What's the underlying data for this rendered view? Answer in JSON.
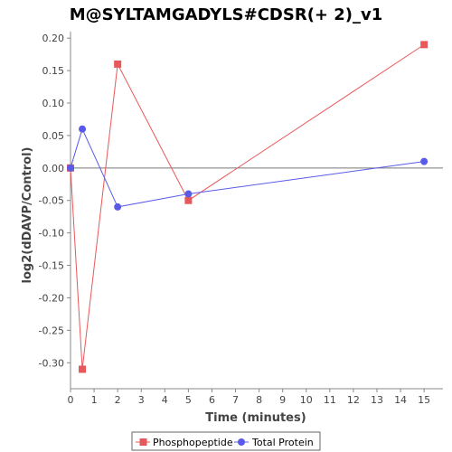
{
  "chart_data": {
    "type": "line",
    "title": "M@SYLTAMGADYLS#CDSR(+ 2)_v1",
    "xlabel": "Time (minutes)",
    "ylabel": "log2(dDAVP/Control)",
    "xlim": [
      0,
      15.8
    ],
    "ylim": [
      -0.34,
      0.21
    ],
    "xticks": [
      "0",
      "1",
      "2",
      "3",
      "4",
      "5",
      "6",
      "7",
      "8",
      "9",
      "10",
      "11",
      "12",
      "13",
      "14",
      "15"
    ],
    "yticks": [
      "0.20",
      "0.15",
      "0.10",
      "0.05",
      "0.00",
      "-0.05",
      "-0.10",
      "-0.15",
      "-0.20",
      "-0.25",
      "-0.30"
    ],
    "ytick_values": [
      0.2,
      0.15,
      0.1,
      0.05,
      0.0,
      -0.05,
      -0.1,
      -0.15,
      -0.2,
      -0.25,
      -0.3
    ],
    "zero_line": true,
    "grid": false,
    "legend_position": "bottom-center",
    "series": [
      {
        "name": "Phosphopeptide",
        "color": "#e8585a",
        "marker": "square",
        "x": [
          0,
          0.5,
          2,
          5,
          15
        ],
        "y": [
          0.0,
          -0.31,
          0.16,
          -0.05,
          0.19
        ]
      },
      {
        "name": "Total Protein",
        "color": "#5a5ae8",
        "marker": "circle",
        "x": [
          0,
          0.5,
          2,
          5,
          15
        ],
        "y": [
          0.0,
          0.06,
          -0.06,
          -0.04,
          0.01
        ]
      }
    ]
  }
}
